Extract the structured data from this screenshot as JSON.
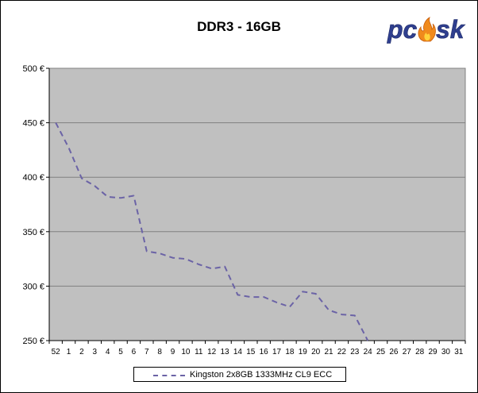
{
  "chart_data": {
    "type": "line",
    "title": "DDR3 - 16GB",
    "xlabel": "",
    "ylabel": "",
    "categories": [
      "52",
      "1",
      "2",
      "3",
      "4",
      "5",
      "6",
      "7",
      "8",
      "9",
      "10",
      "11",
      "12",
      "13",
      "14",
      "15",
      "16",
      "17",
      "18",
      "19",
      "20",
      "21",
      "22",
      "23",
      "24",
      "25",
      "26",
      "27",
      "28",
      "29",
      "30",
      "31"
    ],
    "ylim": [
      250,
      500
    ],
    "yticks": [
      {
        "value": 250,
        "label": "250 €"
      },
      {
        "value": 300,
        "label": "300 €"
      },
      {
        "value": 350,
        "label": "350 €"
      },
      {
        "value": 400,
        "label": "400 €"
      },
      {
        "value": 450,
        "label": "450 €"
      },
      {
        "value": 500,
        "label": "500 €"
      }
    ],
    "grid": true,
    "legend_position": "bottom",
    "series": [
      {
        "name": "Kingston 2x8GB 1333MHz CL9 ECC",
        "color": "#6b63a6",
        "style": "dashed",
        "values": [
          450,
          427,
          399,
          392,
          382,
          381,
          383,
          332,
          330,
          326,
          325,
          320,
          316,
          318,
          292,
          290,
          290,
          285,
          281,
          295,
          293,
          278,
          274,
          273,
          250,
          null,
          null,
          null,
          null,
          null,
          null,
          null
        ]
      }
    ]
  },
  "logo": {
    "text": "pcosk"
  },
  "colors": {
    "plot_background": "#c0c0c0",
    "grid": "#808080",
    "series": "#6b63a6"
  }
}
